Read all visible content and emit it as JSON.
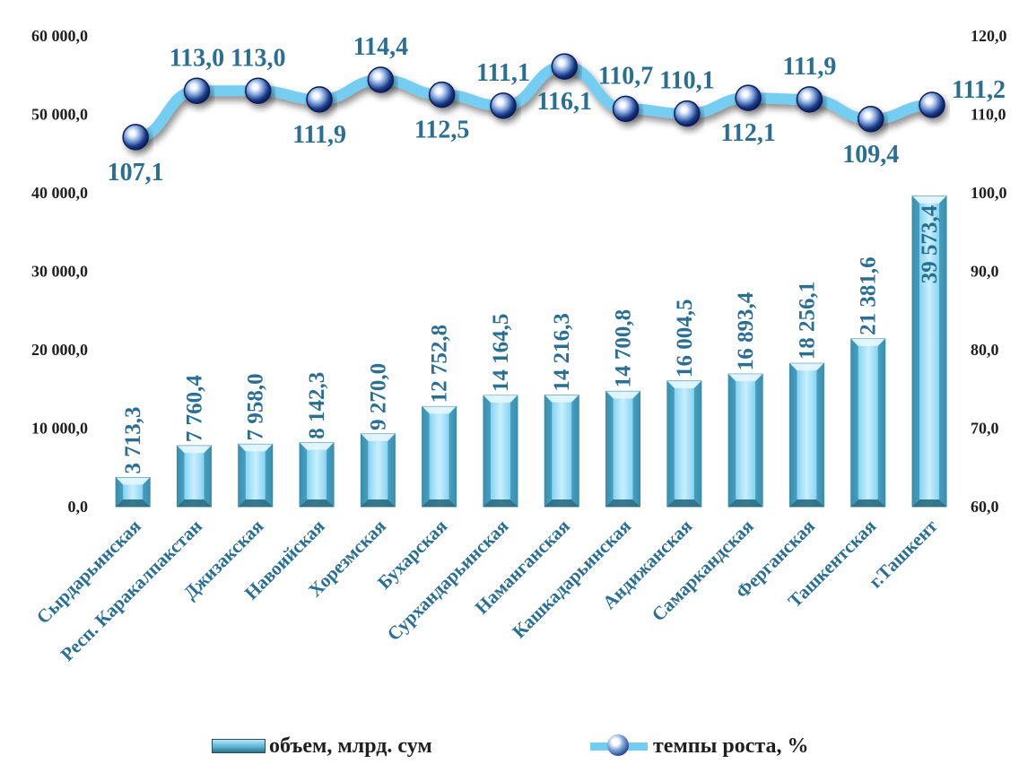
{
  "chart_data": {
    "type": "bar+line",
    "categories": [
      "Сырдарьинская",
      "Респ. Каракалпакстан",
      "Джизакская",
      "Навоийская",
      "Хорезмская",
      "Бухарская",
      "Сурхандарьинская",
      "Наманганская",
      "Кашкадарьинская",
      "Андижанская",
      "Самаркандская",
      "Ферганская",
      "Ташкентская",
      "г.Ташкент"
    ],
    "series": [
      {
        "name": "объем, млрд. сум",
        "type": "bar",
        "axis": "left",
        "values": [
          3713.3,
          7760.4,
          7958.0,
          8142.3,
          9270.0,
          12752.8,
          14164.5,
          14216.3,
          14700.8,
          16004.5,
          16893.4,
          18256.1,
          21381.6,
          39573.4
        ],
        "labels": [
          "3 713,3",
          "7 760,4",
          "7 958,0",
          "8 142,3",
          "9 270,0",
          "12 752,8",
          "14 164,5",
          "14 216,3",
          "14 700,8",
          "16 004,5",
          "16 893,4",
          "18 256,1",
          "21 381,6",
          "39 573,4"
        ]
      },
      {
        "name": "темпы роста, %",
        "type": "line",
        "axis": "right",
        "values": [
          107.1,
          113.0,
          113.0,
          111.9,
          114.4,
          112.5,
          111.1,
          116.1,
          110.7,
          110.1,
          112.1,
          111.9,
          109.4,
          111.2
        ],
        "labels": [
          "107,1",
          "113,0",
          "113,0",
          "111,9",
          "114,4",
          "112,5",
          "111,1",
          "116,1",
          "110,7",
          "110,1",
          "112,1",
          "111,9",
          "109,4",
          "111,2"
        ],
        "label_pos": [
          "below",
          "above",
          "above",
          "below",
          "above",
          "below",
          "above",
          "below",
          "above",
          "above",
          "below",
          "above",
          "below",
          "right"
        ]
      }
    ],
    "y_left": {
      "min": 0,
      "max": 60000,
      "ticks": [
        "0,0",
        "10 000,0",
        "20 000,0",
        "30 000,0",
        "40 000,0",
        "50 000,0",
        "60 000,0"
      ]
    },
    "y_right": {
      "min": 60,
      "max": 120,
      "ticks": [
        "60,0",
        "70,0",
        "80,0",
        "90,0",
        "100,0",
        "110,0",
        "120,0"
      ]
    },
    "grid": false,
    "legend_position": "bottom",
    "colors": {
      "bar": "#5ab4d6",
      "bar_light": "#b9e6f7",
      "bar_dark": "#2e6f86",
      "line": "#74cdf1",
      "marker": "#1a3c8c",
      "label": "#2a6e91",
      "axis_text": "#1f1f1f"
    }
  }
}
